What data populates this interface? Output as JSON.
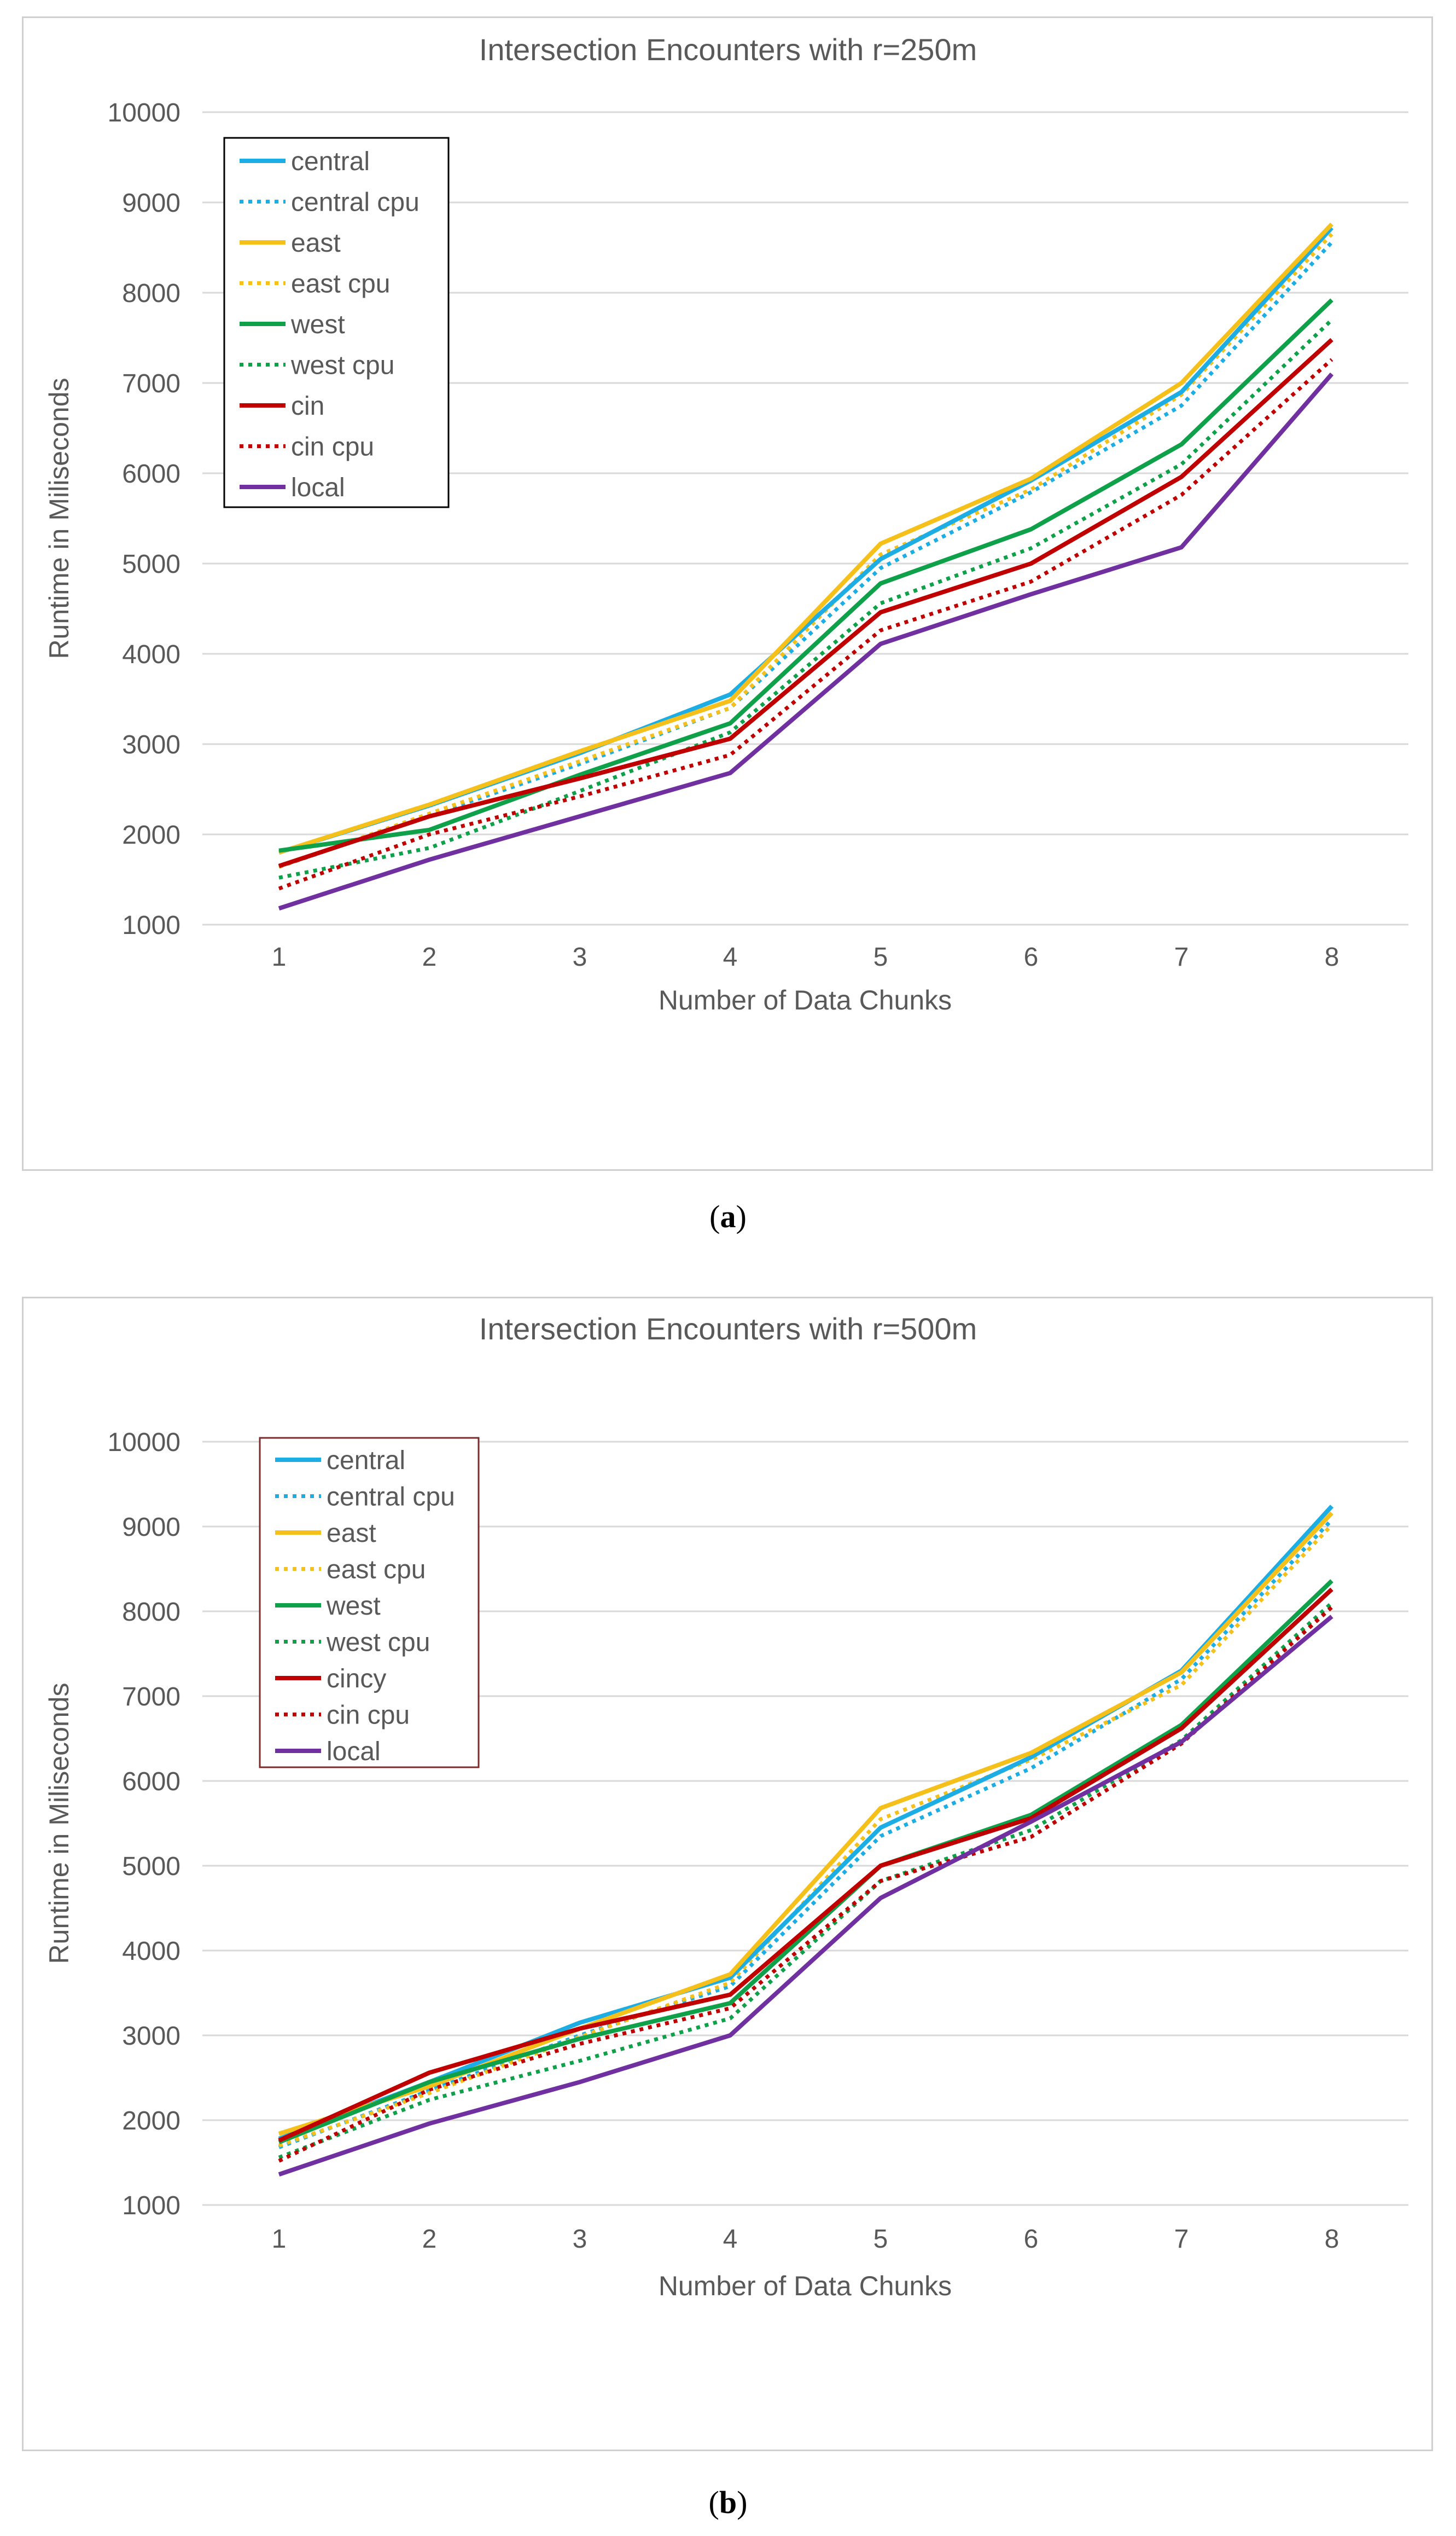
{
  "chart_data": [
    {
      "type": "line",
      "title": "Intersection Encounters with r=250m",
      "xlabel": "Number of Data Chunks",
      "ylabel": "Runtime in Miliseconds",
      "caption_label": "a",
      "categories": [
        "1",
        "2",
        "3",
        "4",
        "5",
        "6",
        "7",
        "8"
      ],
      "ylim": [
        1000,
        10000
      ],
      "yticks": [
        "1000",
        "2000",
        "3000",
        "4000",
        "5000",
        "6000",
        "7000",
        "8000",
        "9000",
        "10000"
      ],
      "legend_position": "top-left",
      "series": [
        {
          "name": "central",
          "color": "#1CADE4",
          "style": "solid",
          "values": [
            1800,
            2320,
            2900,
            3550,
            5050,
            5920,
            6900,
            8720
          ]
        },
        {
          "name": "central cpu",
          "color": "#1CADE4",
          "style": "dotted",
          "values": [
            1640,
            2210,
            2780,
            3400,
            4950,
            5790,
            6750,
            8560
          ]
        },
        {
          "name": "east",
          "color": "#F5C01A",
          "style": "solid",
          "values": [
            1800,
            2330,
            2920,
            3480,
            5220,
            5940,
            7000,
            8760
          ]
        },
        {
          "name": "east cpu",
          "color": "#F5C01A",
          "style": "dotted",
          "values": [
            1640,
            2230,
            2810,
            3400,
            5100,
            5820,
            6870,
            8650
          ]
        },
        {
          "name": "west",
          "color": "#0FA04A",
          "style": "solid",
          "values": [
            1820,
            2050,
            2660,
            3230,
            4780,
            5380,
            6320,
            7920
          ]
        },
        {
          "name": "west cpu",
          "color": "#0FA04A",
          "style": "dotted",
          "values": [
            1520,
            1850,
            2480,
            3130,
            4560,
            5170,
            6100,
            7700
          ]
        },
        {
          "name": "cin",
          "color": "#C00000",
          "style": "solid",
          "values": [
            1650,
            2200,
            2620,
            3060,
            4460,
            5000,
            5960,
            7480
          ]
        },
        {
          "name": "cin cpu",
          "color": "#C00000",
          "style": "dotted",
          "values": [
            1400,
            2000,
            2420,
            2880,
            4260,
            4800,
            5760,
            7260
          ]
        },
        {
          "name": "local",
          "color": "#7030A0",
          "style": "solid",
          "values": [
            1180,
            1720,
            2200,
            2680,
            4110,
            4660,
            5180,
            7100
          ]
        }
      ]
    },
    {
      "type": "line",
      "title": "Intersection Encounters with r=500m",
      "xlabel": "Number of Data Chunks",
      "ylabel": "Runtime in Miliseconds",
      "caption_label": "b",
      "categories": [
        "1",
        "2",
        "3",
        "4",
        "5",
        "6",
        "7",
        "8"
      ],
      "ylim": [
        1000,
        10000
      ],
      "yticks": [
        "1000",
        "2000",
        "3000",
        "4000",
        "5000",
        "6000",
        "7000",
        "8000",
        "9000",
        "10000"
      ],
      "legend_position": "top-left",
      "series": [
        {
          "name": "central",
          "color": "#1CADE4",
          "style": "solid",
          "values": [
            1780,
            2450,
            3150,
            3680,
            5450,
            6280,
            7300,
            9240
          ]
        },
        {
          "name": "central cpu",
          "color": "#1CADE4",
          "style": "dotted",
          "values": [
            1680,
            2350,
            3000,
            3580,
            5350,
            6150,
            7200,
            9080
          ]
        },
        {
          "name": "east",
          "color": "#F5C01A",
          "style": "solid",
          "values": [
            1840,
            2400,
            3080,
            3720,
            5680,
            6330,
            7280,
            9160
          ]
        },
        {
          "name": "east cpu",
          "color": "#F5C01A",
          "style": "dotted",
          "values": [
            1700,
            2320,
            2980,
            3620,
            5550,
            6250,
            7130,
            9020
          ]
        },
        {
          "name": "west",
          "color": "#0FA04A",
          "style": "solid",
          "values": [
            1740,
            2450,
            2960,
            3380,
            5000,
            5600,
            6660,
            8360
          ]
        },
        {
          "name": "west cpu",
          "color": "#0FA04A",
          "style": "dotted",
          "values": [
            1560,
            2240,
            2700,
            3200,
            4820,
            5420,
            6480,
            8100
          ]
        },
        {
          "name": "cincy",
          "color": "#C00000",
          "style": "solid",
          "values": [
            1760,
            2560,
            3080,
            3480,
            5000,
            5560,
            6620,
            8260
          ]
        },
        {
          "name": "cin cpu",
          "color": "#C00000",
          "style": "dotted",
          "values": [
            1520,
            2360,
            2900,
            3320,
            4820,
            5340,
            6440,
            8050
          ]
        },
        {
          "name": "local",
          "color": "#7030A0",
          "style": "solid",
          "values": [
            1360,
            1960,
            2450,
            3000,
            4620,
            5520,
            6460,
            7940
          ]
        }
      ]
    }
  ]
}
